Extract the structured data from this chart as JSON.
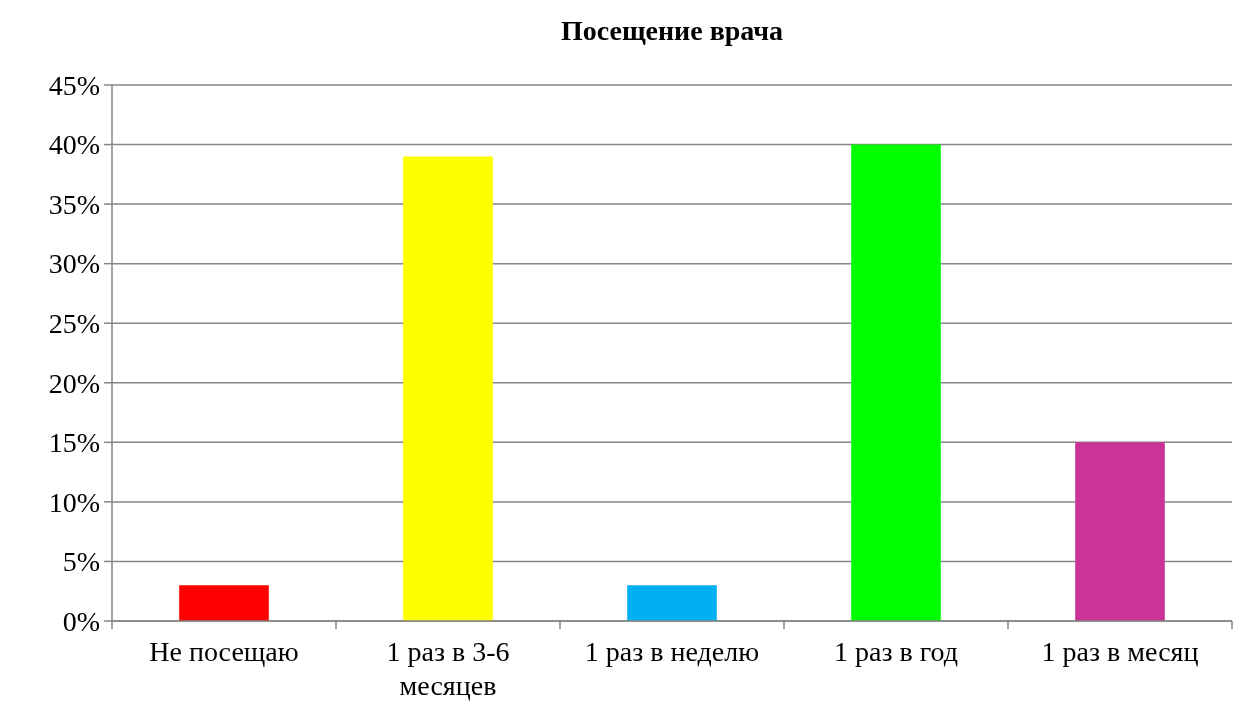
{
  "chart_data": {
    "type": "bar",
    "title": "Посещение врача",
    "categories": [
      "Не посещаю",
      "1 раз в 3-6 месяцев",
      "1 раз в неделю",
      "1 раз в год",
      "1 раз в месяц"
    ],
    "values": [
      3,
      39,
      3,
      40,
      15
    ],
    "colors": [
      "#ff0000",
      "#ffff00",
      "#00b0f0",
      "#00ff00",
      "#cc3399"
    ],
    "ylim": [
      0,
      45
    ],
    "yticks": [
      {
        "value": 0,
        "label": "0%"
      },
      {
        "value": 5,
        "label": "5%"
      },
      {
        "value": 10,
        "label": "10%"
      },
      {
        "value": 15,
        "label": "15%"
      },
      {
        "value": 20,
        "label": "20%"
      },
      {
        "value": 25,
        "label": "25%"
      },
      {
        "value": 30,
        "label": "30%"
      },
      {
        "value": 35,
        "label": "35%"
      },
      {
        "value": 40,
        "label": "40%"
      },
      {
        "value": 45,
        "label": "45%"
      }
    ],
    "grid": "y"
  }
}
